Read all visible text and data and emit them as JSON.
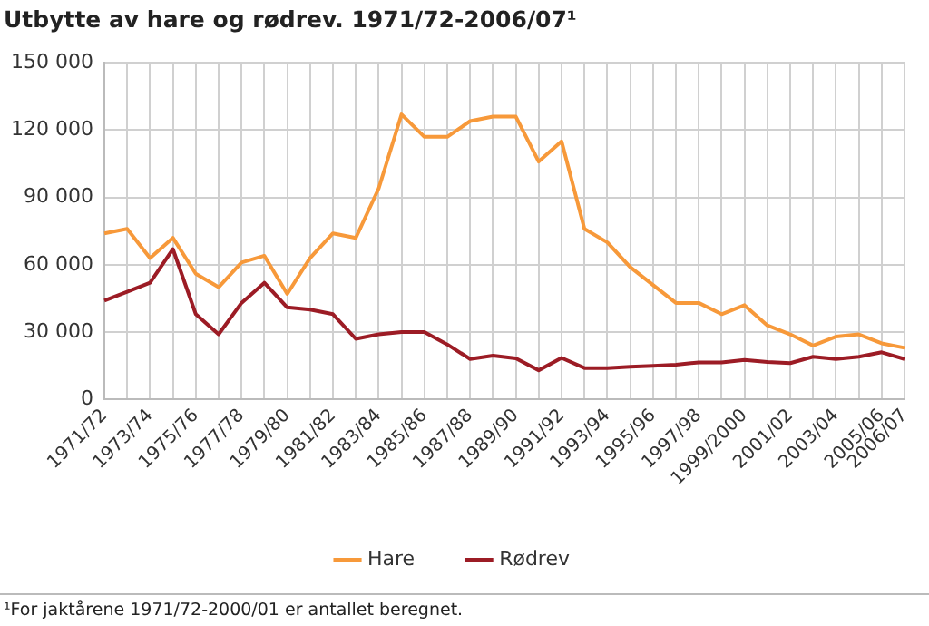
{
  "chart_data": {
    "type": "line",
    "title": "Utbytte av hare og rødrev. 1971/72-2006/07¹",
    "categories": [
      "1971/72",
      null,
      "1973/74",
      null,
      "1975/76",
      null,
      "1977/78",
      null,
      "1979/80",
      null,
      "1981/82",
      null,
      "1983/84",
      null,
      "1985/86",
      null,
      "1987/88",
      null,
      "1989/90",
      null,
      "1991/92",
      null,
      "1993/94",
      null,
      "1995/96",
      null,
      "1997/98",
      null,
      "1999/2000",
      null,
      "2001/02",
      null,
      "2003/04",
      null,
      "2005/06",
      "2006/07"
    ],
    "series": [
      {
        "name": "Hare",
        "color": "#f7993a",
        "values": [
          74000,
          76000,
          63000,
          72000,
          56000,
          50000,
          61000,
          64000,
          47000,
          63000,
          74000,
          72000,
          94000,
          127000,
          117000,
          117000,
          124000,
          126000,
          126000,
          106000,
          115000,
          76000,
          70000,
          59000,
          51000,
          43000,
          43000,
          38000,
          42000,
          33000,
          29000,
          24000,
          28000,
          29000,
          25000,
          23000
        ]
      },
      {
        "name": "Rødrev",
        "color": "#9c1c25",
        "values": [
          44000,
          48000,
          52000,
          67000,
          38000,
          29000,
          43000,
          52000,
          41000,
          40000,
          38000,
          27000,
          29000,
          30000,
          30000,
          24500,
          18000,
          19500,
          18300,
          13000,
          18500,
          14000,
          14000,
          14600,
          15000,
          15500,
          16500,
          16500,
          17600,
          16700,
          16200,
          19000,
          18000,
          19000,
          21000,
          18000
        ]
      }
    ],
    "ylim": [
      0,
      150000
    ],
    "yticks": [
      {
        "value": 0,
        "label": "0"
      },
      {
        "value": 30000,
        "label": "30 000"
      },
      {
        "value": 60000,
        "label": "60 000"
      },
      {
        "value": 90000,
        "label": "90 000"
      },
      {
        "value": 120000,
        "label": "120 000"
      },
      {
        "value": 150000,
        "label": "150 000"
      }
    ],
    "grid": true,
    "legend": "bottom",
    "marker": "none",
    "line_style": "solid",
    "annotations": [
      "¹For jaktårene 1971/72-2000/01 er antallet beregnet."
    ]
  }
}
